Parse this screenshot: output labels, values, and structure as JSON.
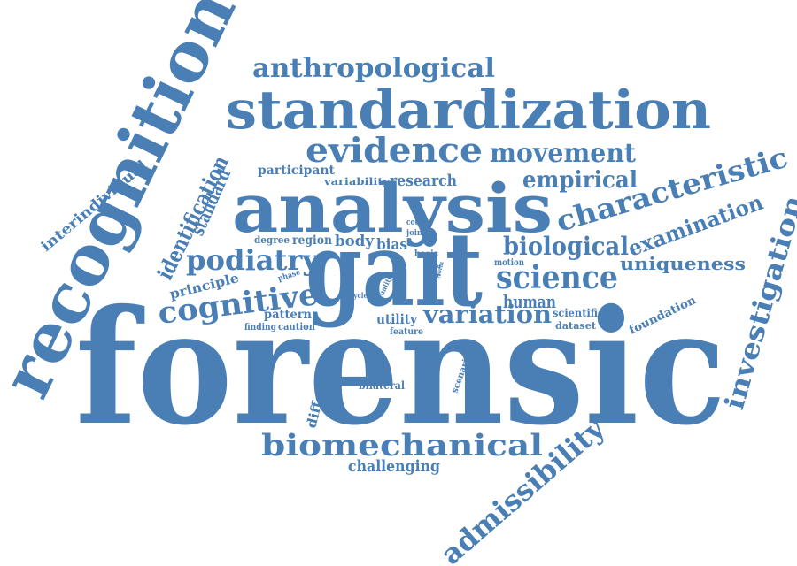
{
  "colors": {
    "word": "#4a7fb5",
    "background": "#ffffff"
  },
  "words": {
    "forensic": "forensic",
    "gait": "gait",
    "analysis": "analysis",
    "recognition": "recognition",
    "standardization": "standardization",
    "evidence": "evidence",
    "anthropological": "anthropological",
    "movement": "movement",
    "empirical": "empirical",
    "characteristic": "characteristic",
    "examination": "examination",
    "investigation": "investigation",
    "admissibility": "admissibility",
    "biomechanical": "biomechanical",
    "challenging": "challenging",
    "variation": "variation",
    "science": "science",
    "uniqueness": "uniqueness",
    "biological": "biological",
    "human": "human",
    "scientific": "scientific",
    "dataset": "dataset",
    "foundation": "foundation",
    "podiatry": "podiatry",
    "cognitive": "cognitive",
    "identification": "identification",
    "standard": "standard",
    "interindividual": "interindividual",
    "principle": "principle",
    "participant": "participant",
    "variability": "variability",
    "research": "research",
    "degree": "degree",
    "region": "region",
    "body": "body",
    "bias": "bias",
    "court": "court",
    "joint": "joint",
    "basis": "basis",
    "phase": "phase",
    "pattern": "pattern",
    "finding": "finding",
    "caution": "caution",
    "utility": "utility",
    "feature": "feature",
    "cycle": "cycle",
    "quality": "quality",
    "data": "data",
    "side": "side",
    "form": "form",
    "motion": "motion",
    "different": "different",
    "bilateral": "bilateral",
    "method": "method",
    "scenario": "scenario"
  }
}
